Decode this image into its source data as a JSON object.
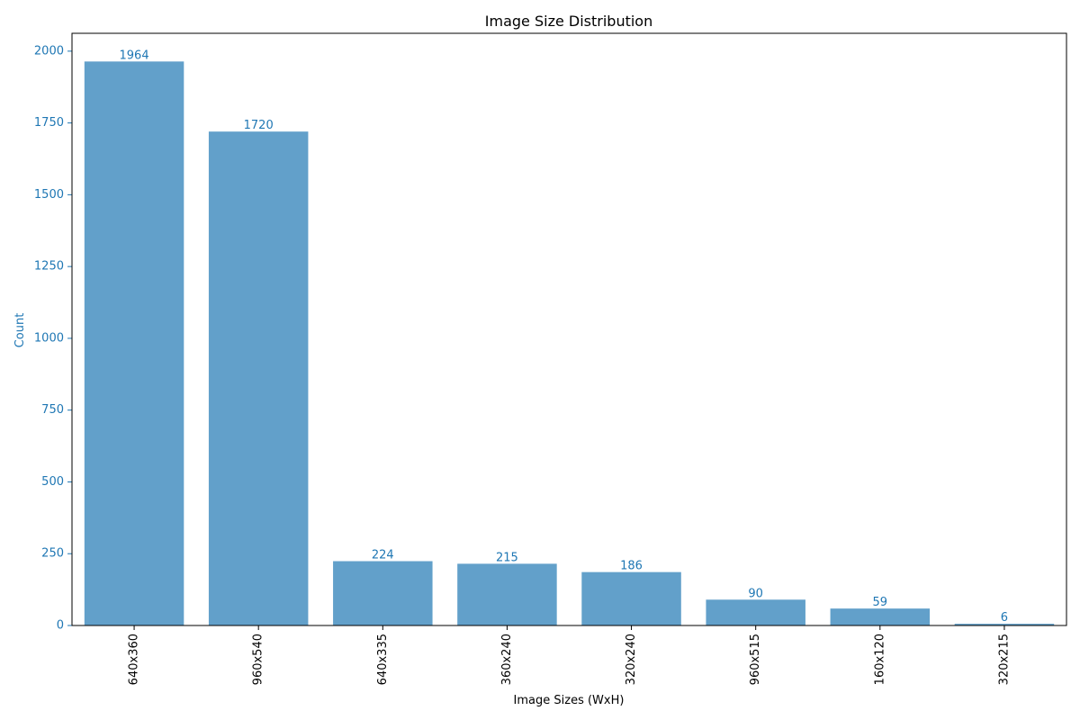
{
  "chart_data": {
    "type": "bar",
    "title": "Image Size Distribution",
    "xlabel": "Image Sizes (WxH)",
    "ylabel": "Count",
    "categories": [
      "640x360",
      "960x540",
      "640x335",
      "360x240",
      "320x240",
      "960x515",
      "160x120",
      "320x215"
    ],
    "values": [
      1964,
      1720,
      224,
      215,
      186,
      90,
      59,
      6
    ],
    "value_labels": [
      "1964",
      "1720",
      "224",
      "215",
      "186",
      "90",
      "59",
      "6"
    ],
    "ylim": [
      0,
      2062.2
    ],
    "yticks": [
      0,
      250,
      500,
      750,
      1000,
      1250,
      1500,
      1750,
      2000
    ],
    "ytick_labels": [
      "0",
      "250",
      "500",
      "750",
      "1000",
      "1250",
      "1500",
      "1750",
      "2000"
    ],
    "grid": false,
    "legend": "none",
    "colors": {
      "bar": "#1f77b4",
      "bar_opacity": "0.7",
      "accent_text": "#1f77b4",
      "text": "#000000",
      "axis": "#000000"
    }
  }
}
